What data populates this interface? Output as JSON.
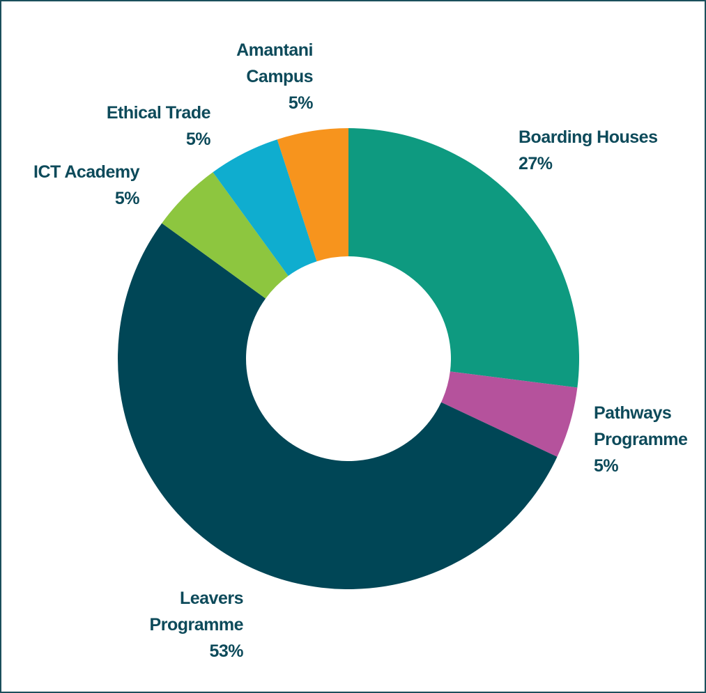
{
  "chart_data": {
    "type": "donut",
    "categories": [
      "Boarding Houses",
      "Pathways Programme",
      "Leavers Programme",
      "ICT Academy",
      "Ethical Trade",
      "Amantani Campus"
    ],
    "values": [
      27,
      5,
      53,
      5,
      5,
      5
    ],
    "value_labels": [
      "27%",
      "5%",
      "53%",
      "5%",
      "5%",
      "5%"
    ],
    "colors": [
      "#0e9a80",
      "#b5529c",
      "#004656",
      "#8dc63f",
      "#0fadcf",
      "#f7941d"
    ]
  }
}
